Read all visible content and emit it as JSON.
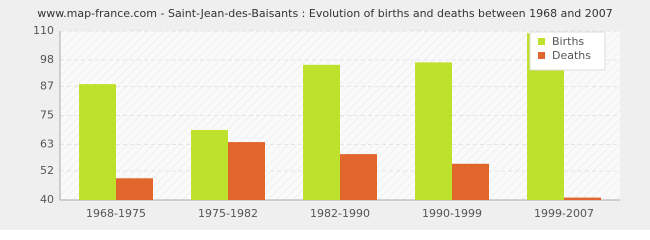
{
  "chart_data": {
    "type": "bar",
    "title": "www.map-france.com - Saint-Jean-des-Baisants : Evolution of births and deaths between 1968 and 2007",
    "categories": [
      "1968-1975",
      "1975-1982",
      "1982-1990",
      "1990-1999",
      "1999-2007"
    ],
    "series": [
      {
        "name": "Births",
        "color": "#bde12d",
        "values": [
          88,
          69,
          96,
          97,
          109
        ]
      },
      {
        "name": "Deaths",
        "color": "#e0662e",
        "values": [
          49,
          64,
          59,
          55,
          41
        ]
      }
    ],
    "ylim": [
      40,
      110
    ],
    "yticks": [
      40,
      52,
      63,
      75,
      87,
      98,
      110
    ],
    "grid": true,
    "legend": "top-right"
  }
}
